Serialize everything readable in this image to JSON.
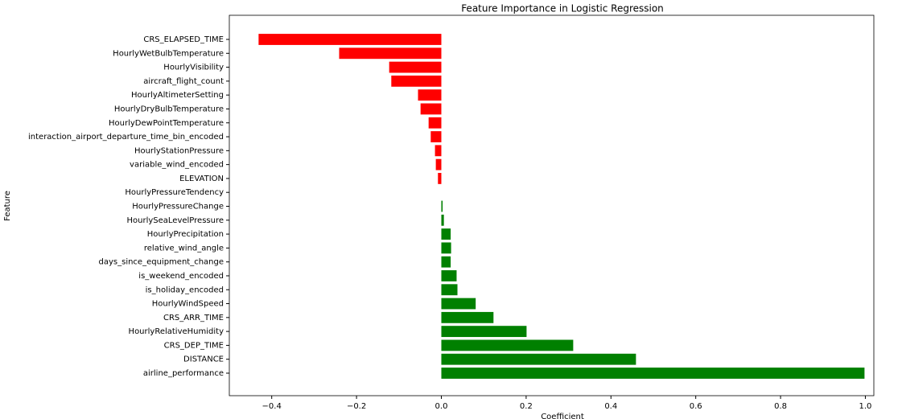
{
  "chart_data": {
    "type": "barh",
    "title": "Feature Importance in Logistic Regression",
    "x_label": "Coefficient",
    "y_label": "Feature",
    "categories": [
      "CRS_ELAPSED_TIME",
      "HourlyWetBulbTemperature",
      "HourlyVisibility",
      "aircraft_flight_count",
      "HourlyAltimeterSetting",
      "HourlyDryBulbTemperature",
      "HourlyDewPointTemperature",
      "interaction_airport_departure_time_bin_encoded",
      "HourlyStationPressure",
      "variable_wind_encoded",
      "ELEVATION",
      "HourlyPressureTendency",
      "HourlyPressureChange",
      "HourlySeaLevelPressure",
      "HourlyPrecipitation",
      "relative_wind_angle",
      "days_since_equipment_change",
      "is_weekend_encoded",
      "is_holiday_encoded",
      "HourlyWindSpeed",
      "CRS_ARR_TIME",
      "HourlyRelativeHumidity",
      "CRS_DEP_TIME",
      "DISTANCE",
      "airline_performance"
    ],
    "values": [
      -0.431,
      -0.241,
      -0.123,
      -0.118,
      -0.055,
      -0.049,
      -0.03,
      -0.025,
      -0.015,
      -0.013,
      -0.008,
      0.0,
      0.003,
      0.006,
      0.022,
      0.023,
      0.022,
      0.036,
      0.038,
      0.081,
      0.123,
      0.201,
      0.311,
      0.459,
      0.998
    ],
    "negative_color": "#ff0000",
    "positive_color": "#008000",
    "xlim": [
      -0.5,
      1.02
    ],
    "xticks": [
      {
        "value": -0.4,
        "label": "−0.4"
      },
      {
        "value": -0.2,
        "label": "−0.2"
      },
      {
        "value": 0,
        "label": "0.0"
      },
      {
        "value": 0.2,
        "label": "0.2"
      },
      {
        "value": 0.4,
        "label": "0.4"
      },
      {
        "value": 0.6,
        "label": "0.6"
      },
      {
        "value": 0.8,
        "label": "0.8"
      },
      {
        "value": 1,
        "label": "1.0"
      }
    ]
  }
}
